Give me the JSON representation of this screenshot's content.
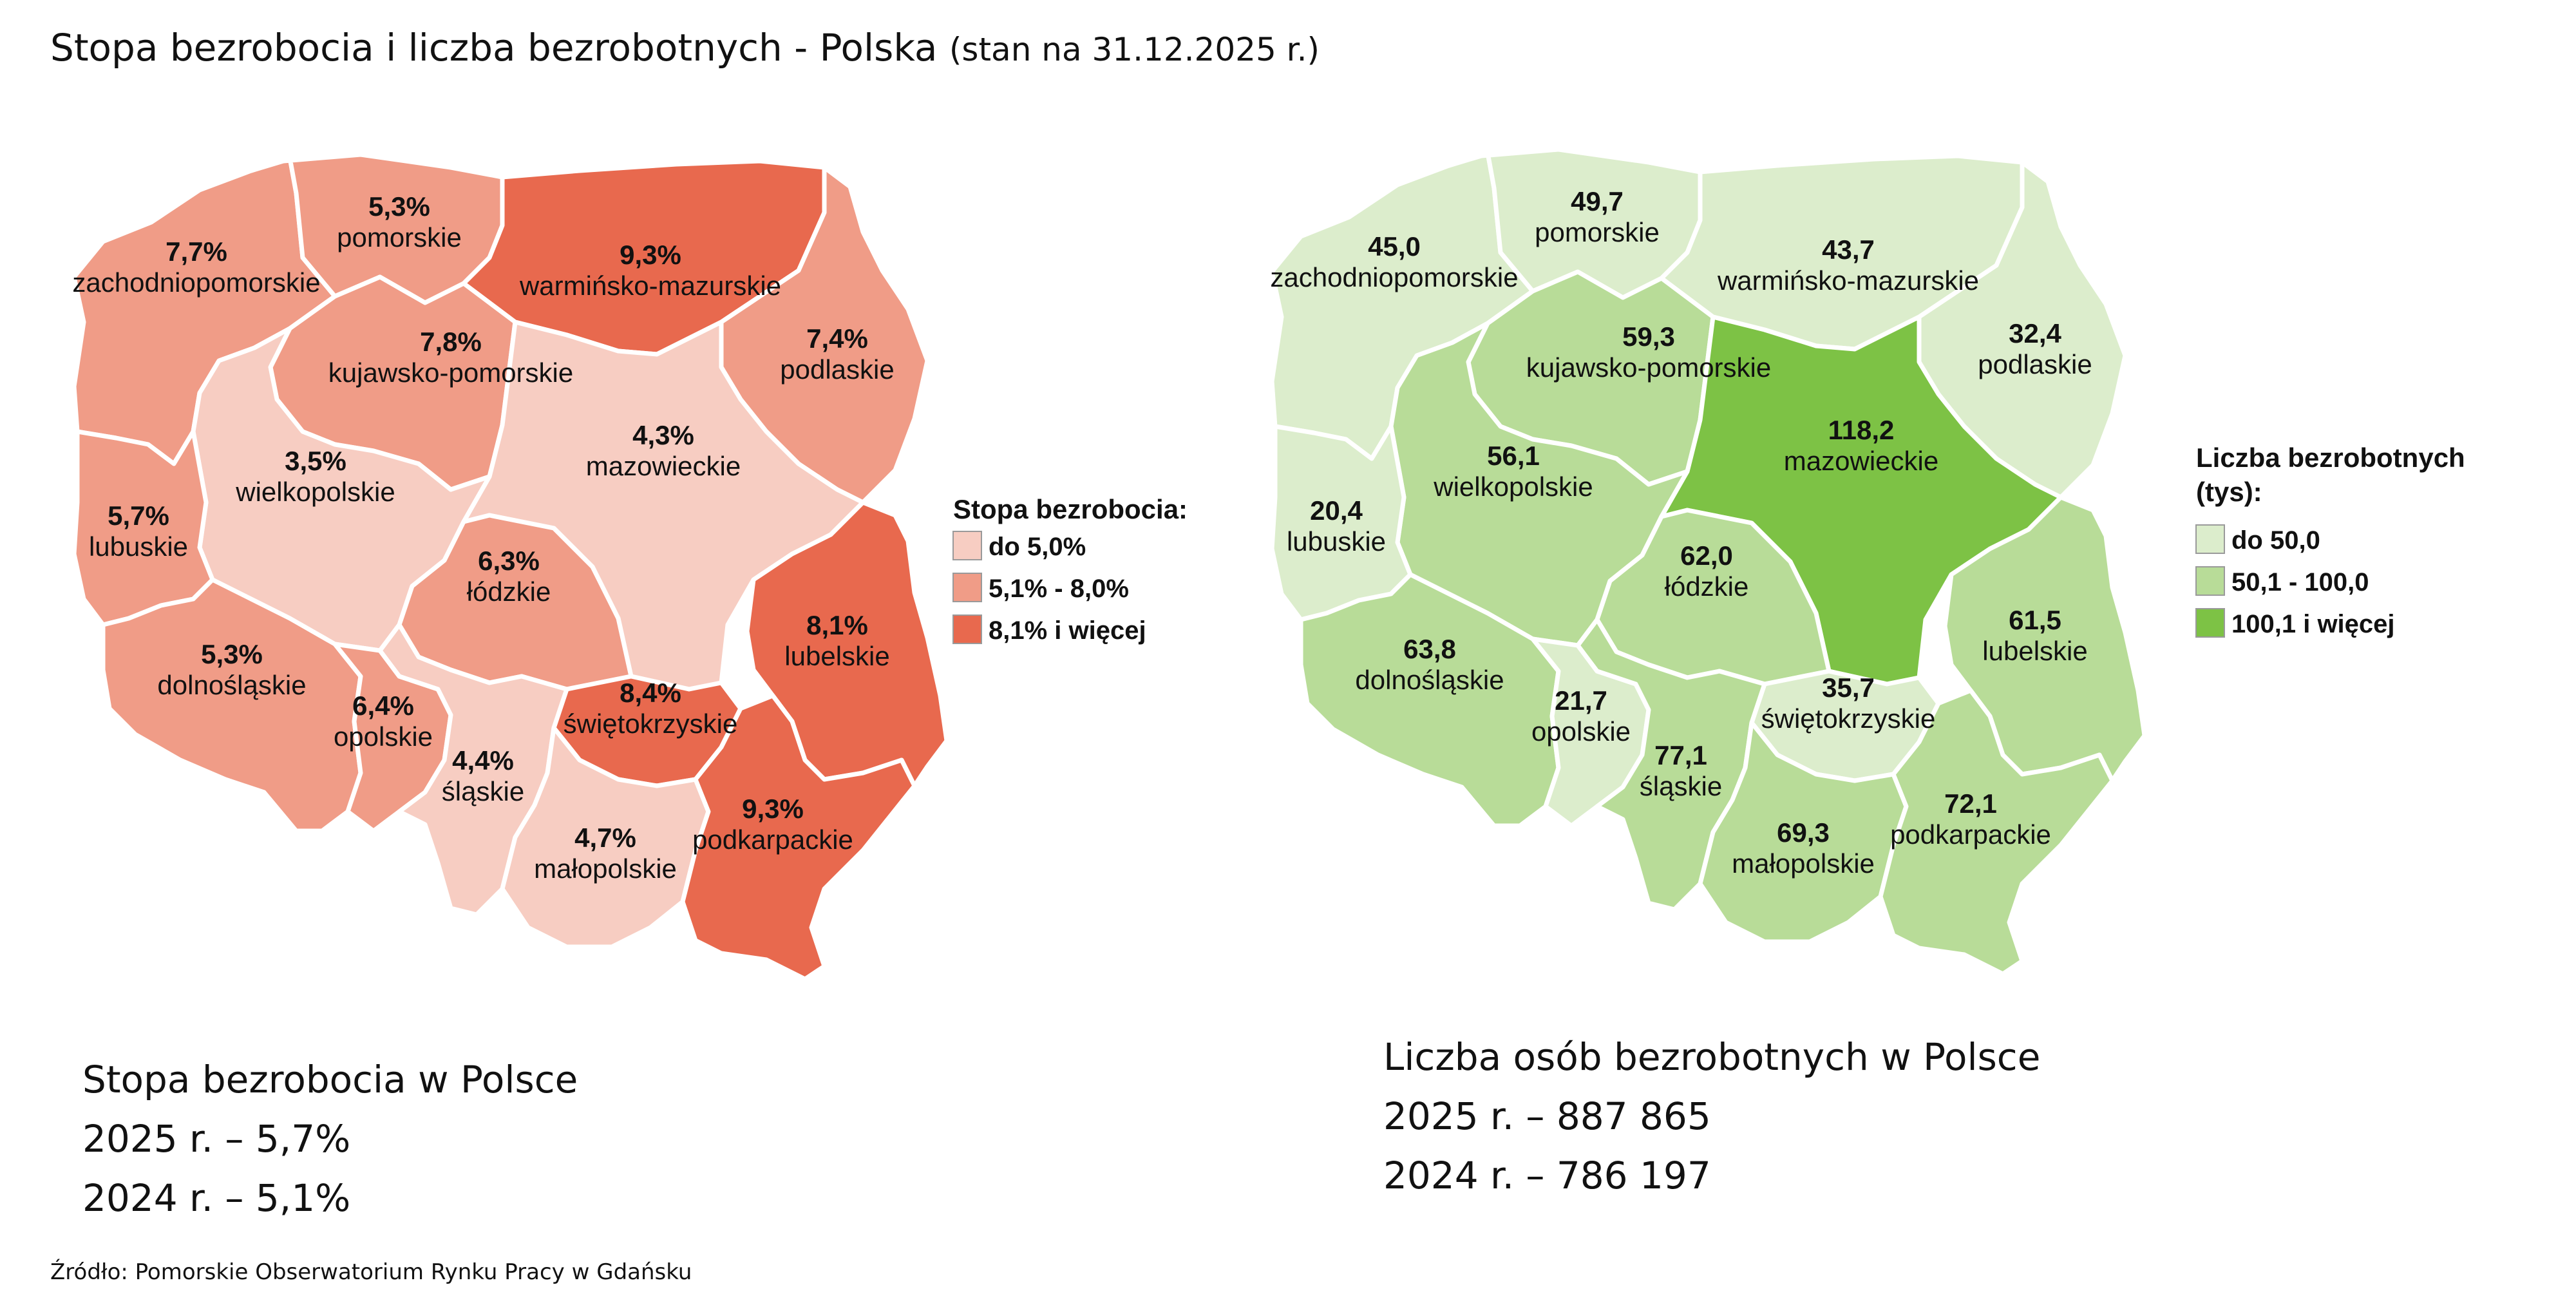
{
  "title": {
    "main": "Stopa bezrobocia i liczba bezrobotnych - Polska",
    "suffix": "(stan na 31.12.2025 r.)"
  },
  "colors": {
    "rate": [
      "#f7cdc2",
      "#f09c87",
      "#e8694e"
    ],
    "count": [
      "#dcedcc",
      "#b8dc98",
      "#7dc245"
    ]
  },
  "rate_map": {
    "legend": {
      "title": "Stopa bezrobocia:",
      "items": [
        "do 5,0%",
        "5,1% - 8,0%",
        "8,1% i więcej"
      ]
    },
    "regions": [
      {
        "id": "zachodniopomorskie",
        "name": "zachodniopomorskie",
        "value": "7,7%",
        "level": 1
      },
      {
        "id": "pomorskie",
        "name": "pomorskie",
        "value": "5,3%",
        "level": 1
      },
      {
        "id": "warminsko-mazurskie",
        "name": "warmińsko-mazurskie",
        "value": "9,3%",
        "level": 2
      },
      {
        "id": "podlaskie",
        "name": "podlaskie",
        "value": "7,4%",
        "level": 1
      },
      {
        "id": "kujawsko-pomorskie",
        "name": "kujawsko-pomorskie",
        "value": "7,8%",
        "level": 1
      },
      {
        "id": "wielkopolskie",
        "name": "wielkopolskie",
        "value": "3,5%",
        "level": 0
      },
      {
        "id": "mazowieckie",
        "name": "mazowieckie",
        "value": "4,3%",
        "level": 0
      },
      {
        "id": "lubuskie",
        "name": "lubuskie",
        "value": "5,7%",
        "level": 1
      },
      {
        "id": "lodzkie",
        "name": "łódzkie",
        "value": "6,3%",
        "level": 1
      },
      {
        "id": "lubelskie",
        "name": "lubelskie",
        "value": "8,1%",
        "level": 2
      },
      {
        "id": "dolnoslaskie",
        "name": "dolnośląskie",
        "value": "5,3%",
        "level": 1
      },
      {
        "id": "opolskie",
        "name": "opolskie",
        "value": "6,4%",
        "level": 1
      },
      {
        "id": "swietokrzyskie",
        "name": "świętokrzyskie",
        "value": "8,4%",
        "level": 2
      },
      {
        "id": "slaskie",
        "name": "śląskie",
        "value": "4,4%",
        "level": 0
      },
      {
        "id": "malopolskie",
        "name": "małopolskie",
        "value": "4,7%",
        "level": 0
      },
      {
        "id": "podkarpackie",
        "name": "podkarpackie",
        "value": "9,3%",
        "level": 2
      }
    ]
  },
  "count_map": {
    "legend": {
      "title_line1": "Liczba bezrobotnych",
      "title_line2": "(tys):",
      "items": [
        "do 50,0",
        "50,1 - 100,0",
        "100,1 i więcej"
      ]
    },
    "regions": [
      {
        "id": "zachodniopomorskie",
        "name": "zachodniopomorskie",
        "value": "45,0",
        "level": 0
      },
      {
        "id": "pomorskie",
        "name": "pomorskie",
        "value": "49,7",
        "level": 0
      },
      {
        "id": "warminsko-mazurskie",
        "name": "warmińsko-mazurskie",
        "value": "43,7",
        "level": 0
      },
      {
        "id": "podlaskie",
        "name": "podlaskie",
        "value": "32,4",
        "level": 0
      },
      {
        "id": "kujawsko-pomorskie",
        "name": "kujawsko-pomorskie",
        "value": "59,3",
        "level": 1
      },
      {
        "id": "wielkopolskie",
        "name": "wielkopolskie",
        "value": "56,1",
        "level": 1
      },
      {
        "id": "mazowieckie",
        "name": "mazowieckie",
        "value": "118,2",
        "level": 2
      },
      {
        "id": "lubuskie",
        "name": "lubuskie",
        "value": "20,4",
        "level": 0
      },
      {
        "id": "lodzkie",
        "name": "łódzkie",
        "value": "62,0",
        "level": 1
      },
      {
        "id": "lubelskie",
        "name": "lubelskie",
        "value": "61,5",
        "level": 1
      },
      {
        "id": "dolnoslaskie",
        "name": "dolnośląskie",
        "value": "63,8",
        "level": 1
      },
      {
        "id": "opolskie",
        "name": "opolskie",
        "value": "21,7",
        "level": 0
      },
      {
        "id": "swietokrzyskie",
        "name": "świętokrzyskie",
        "value": "35,7",
        "level": 0
      },
      {
        "id": "slaskie",
        "name": "śląskie",
        "value": "77,1",
        "level": 1
      },
      {
        "id": "malopolskie",
        "name": "małopolskie",
        "value": "69,3",
        "level": 1
      },
      {
        "id": "podkarpackie",
        "name": "podkarpackie",
        "value": "72,1",
        "level": 1
      }
    ]
  },
  "summary_rate": {
    "heading": "Stopa bezrobocia w Polsce",
    "line_2025": "2025 r. – 5,7%",
    "line_2024": "2024 r. – 5,1%"
  },
  "summary_count": {
    "heading": "Liczba osób bezrobotnych w Polsce",
    "line_2025": "2025 r. – 887 865",
    "line_2024": "2024 r. – 786 197"
  },
  "source": "Źródło: Pomorskie Obserwatorium Rynku Pracy w Gdańsku"
}
